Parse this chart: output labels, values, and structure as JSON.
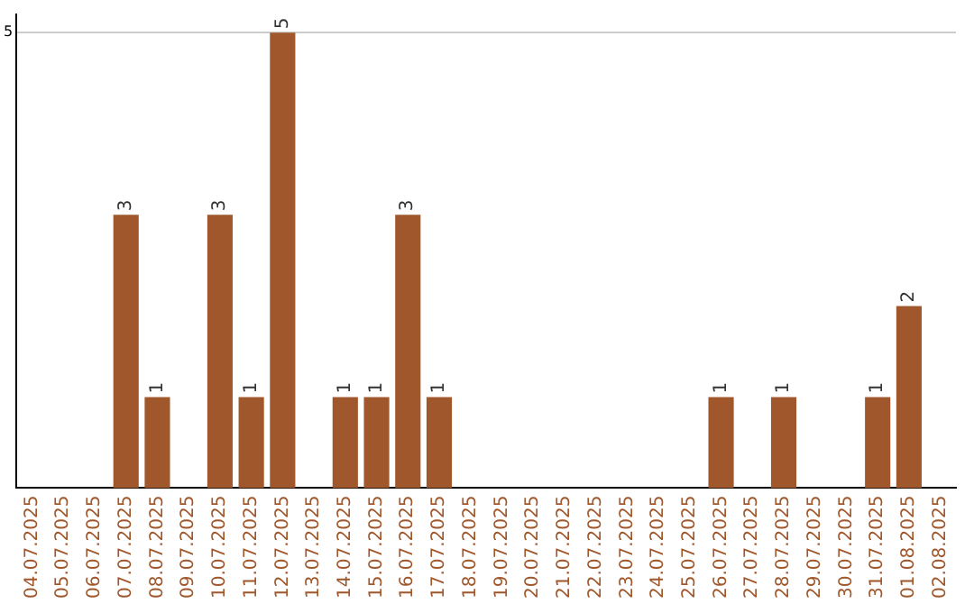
{
  "chart_data": {
    "type": "bar",
    "categories": [
      "04.07.2025",
      "05.07.2025",
      "06.07.2025",
      "07.07.2025",
      "08.07.2025",
      "09.07.2025",
      "10.07.2025",
      "11.07.2025",
      "12.07.2025",
      "13.07.2025",
      "14.07.2025",
      "15.07.2025",
      "16.07.2025",
      "17.07.2025",
      "18.07.2025",
      "19.07.2025",
      "20.07.2025",
      "21.07.2025",
      "22.07.2025",
      "23.07.2025",
      "24.07.2025",
      "25.07.2025",
      "26.07.2025",
      "27.07.2025",
      "28.07.2025",
      "29.07.2025",
      "30.07.2025",
      "31.07.2025",
      "01.08.2025",
      "02.08.2025"
    ],
    "values": [
      null,
      null,
      null,
      3,
      1,
      null,
      3,
      1,
      5,
      null,
      1,
      1,
      3,
      1,
      null,
      null,
      null,
      null,
      null,
      null,
      null,
      null,
      1,
      null,
      1,
      null,
      null,
      1,
      2,
      null
    ],
    "color": "#a0572b",
    "ylim": [
      0,
      5.2
    ],
    "yticks": [
      5
    ],
    "grid": "y",
    "data_labels": true,
    "legend": false
  }
}
